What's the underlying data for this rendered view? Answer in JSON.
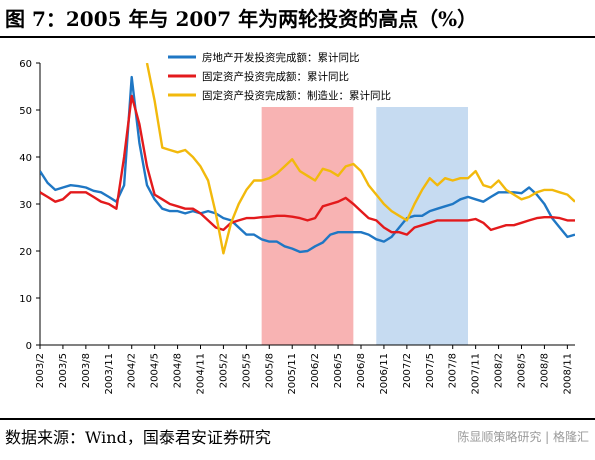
{
  "title": "图 7：2005 年与 2007 年为两轮投资的高点（%）",
  "source": "数据来源：Wind，国泰君安证券研究",
  "watermark": "陈显顺策略研究 | 格隆汇",
  "chart_data": {
    "type": "line",
    "ylim": [
      0,
      60
    ],
    "yticks": [
      0,
      10,
      20,
      30,
      40,
      50,
      60
    ],
    "x_range": [
      "2003-02",
      "2008-12"
    ],
    "x_tick_labels": [
      "2003/2",
      "2003/5",
      "2003/8",
      "2003/11",
      "2004/2",
      "2004/5",
      "2004/8",
      "2004/11",
      "2005/2",
      "2005/5",
      "2005/8",
      "2005/11",
      "2006/2",
      "2006/5",
      "2006/8",
      "2006/11",
      "2007/2",
      "2007/5",
      "2007/8",
      "2007/11",
      "2008/2",
      "2008/5",
      "2008/8",
      "2008/11"
    ],
    "x_tick_dates": [
      "2003-02",
      "2003-05",
      "2003-08",
      "2003-11",
      "2004-02",
      "2004-05",
      "2004-08",
      "2004-11",
      "2005-02",
      "2005-05",
      "2005-08",
      "2005-11",
      "2006-02",
      "2006-05",
      "2006-08",
      "2006-11",
      "2007-02",
      "2007-05",
      "2007-08",
      "2007-11",
      "2008-02",
      "2008-05",
      "2008-08",
      "2008-11"
    ],
    "shaded_regions": [
      {
        "start": "2005-07",
        "end": "2006-07",
        "color": "#f8b3b3"
      },
      {
        "start": "2006-10",
        "end": "2007-10",
        "color": "#c6dbf1"
      }
    ],
    "legend_position": "top",
    "series": [
      {
        "name": "房地产开发投资完成额：累计同比",
        "color": "#1f77c4",
        "points": [
          [
            "2003-02",
            37
          ],
          [
            "2003-03",
            34.5
          ],
          [
            "2003-04",
            33
          ],
          [
            "2003-05",
            33.5
          ],
          [
            "2003-06",
            34
          ],
          [
            "2003-07",
            33.8
          ],
          [
            "2003-08",
            33.5
          ],
          [
            "2003-09",
            32.8
          ],
          [
            "2003-10",
            32.5
          ],
          [
            "2003-11",
            31.5
          ],
          [
            "2003-12",
            30.5
          ],
          [
            "2004-01",
            34
          ],
          [
            "2004-02",
            57
          ],
          [
            "2004-03",
            43
          ],
          [
            "2004-04",
            34
          ],
          [
            "2004-05",
            31
          ],
          [
            "2004-06",
            29
          ],
          [
            "2004-07",
            28.5
          ],
          [
            "2004-08",
            28.5
          ],
          [
            "2004-09",
            28
          ],
          [
            "2004-10",
            28.5
          ],
          [
            "2004-11",
            28
          ],
          [
            "2004-12",
            28.5
          ],
          [
            "2005-01",
            28
          ],
          [
            "2005-02",
            27
          ],
          [
            "2005-03",
            26.5
          ],
          [
            "2005-04",
            25
          ],
          [
            "2005-05",
            23.5
          ],
          [
            "2005-06",
            23.5
          ],
          [
            "2005-07",
            22.5
          ],
          [
            "2005-08",
            22
          ],
          [
            "2005-09",
            22
          ],
          [
            "2005-10",
            21
          ],
          [
            "2005-11",
            20.5
          ],
          [
            "2005-12",
            19.8
          ],
          [
            "2006-01",
            20
          ],
          [
            "2006-02",
            21
          ],
          [
            "2006-03",
            21.8
          ],
          [
            "2006-04",
            23.5
          ],
          [
            "2006-05",
            24
          ],
          [
            "2006-06",
            24
          ],
          [
            "2006-07",
            24
          ],
          [
            "2006-08",
            24
          ],
          [
            "2006-09",
            23.5
          ],
          [
            "2006-10",
            22.5
          ],
          [
            "2006-11",
            22
          ],
          [
            "2006-12",
            23
          ],
          [
            "2007-01",
            25
          ],
          [
            "2007-02",
            27
          ],
          [
            "2007-03",
            27.5
          ],
          [
            "2007-04",
            27.5
          ],
          [
            "2007-05",
            28.5
          ],
          [
            "2007-06",
            29
          ],
          [
            "2007-07",
            29.5
          ],
          [
            "2007-08",
            30
          ],
          [
            "2007-09",
            31
          ],
          [
            "2007-10",
            31.5
          ],
          [
            "2007-11",
            31
          ],
          [
            "2007-12",
            30.5
          ],
          [
            "2008-01",
            31.5
          ],
          [
            "2008-02",
            32.5
          ],
          [
            "2008-03",
            32.5
          ],
          [
            "2008-04",
            32.5
          ],
          [
            "2008-05",
            32.3
          ],
          [
            "2008-06",
            33.5
          ],
          [
            "2008-07",
            32
          ],
          [
            "2008-08",
            30
          ],
          [
            "2008-09",
            27
          ],
          [
            "2008-10",
            25
          ],
          [
            "2008-11",
            23
          ],
          [
            "2008-12",
            23.5
          ]
        ]
      },
      {
        "name": "固定资产投资完成额：累计同比",
        "color": "#e31a1c",
        "points": [
          [
            "2003-02",
            32.5
          ],
          [
            "2003-03",
            31.5
          ],
          [
            "2003-04",
            30.5
          ],
          [
            "2003-05",
            31
          ],
          [
            "2003-06",
            32.5
          ],
          [
            "2003-07",
            32.5
          ],
          [
            "2003-08",
            32.5
          ],
          [
            "2003-09",
            31.5
          ],
          [
            "2003-10",
            30.5
          ],
          [
            "2003-11",
            30
          ],
          [
            "2003-12",
            29
          ],
          [
            "2004-01",
            40
          ],
          [
            "2004-02",
            53
          ],
          [
            "2004-03",
            47
          ],
          [
            "2004-04",
            38
          ],
          [
            "2004-05",
            32
          ],
          [
            "2004-06",
            31
          ],
          [
            "2004-07",
            30
          ],
          [
            "2004-08",
            29.5
          ],
          [
            "2004-09",
            29
          ],
          [
            "2004-10",
            29
          ],
          [
            "2004-11",
            28
          ],
          [
            "2004-12",
            26.5
          ],
          [
            "2005-01",
            25
          ],
          [
            "2005-02",
            24.5
          ],
          [
            "2005-03",
            26
          ],
          [
            "2005-04",
            26.5
          ],
          [
            "2005-05",
            27
          ],
          [
            "2005-06",
            27
          ],
          [
            "2005-07",
            27.2
          ],
          [
            "2005-08",
            27.3
          ],
          [
            "2005-09",
            27.5
          ],
          [
            "2005-10",
            27.5
          ],
          [
            "2005-11",
            27.3
          ],
          [
            "2005-12",
            27
          ],
          [
            "2006-01",
            26.5
          ],
          [
            "2006-02",
            27
          ],
          [
            "2006-03",
            29.5
          ],
          [
            "2006-04",
            30
          ],
          [
            "2006-05",
            30.5
          ],
          [
            "2006-06",
            31.3
          ],
          [
            "2006-07",
            30
          ],
          [
            "2006-08",
            28.5
          ],
          [
            "2006-09",
            27
          ],
          [
            "2006-10",
            26.5
          ],
          [
            "2006-11",
            25
          ],
          [
            "2006-12",
            24
          ],
          [
            "2007-01",
            24
          ],
          [
            "2007-02",
            23.5
          ],
          [
            "2007-03",
            25
          ],
          [
            "2007-04",
            25.5
          ],
          [
            "2007-05",
            26
          ],
          [
            "2007-06",
            26.5
          ],
          [
            "2007-07",
            26.5
          ],
          [
            "2007-08",
            26.5
          ],
          [
            "2007-09",
            26.5
          ],
          [
            "2007-10",
            26.5
          ],
          [
            "2007-11",
            26.8
          ],
          [
            "2007-12",
            26
          ],
          [
            "2008-01",
            24.5
          ],
          [
            "2008-02",
            25
          ],
          [
            "2008-03",
            25.5
          ],
          [
            "2008-04",
            25.5
          ],
          [
            "2008-05",
            26
          ],
          [
            "2008-06",
            26.5
          ],
          [
            "2008-07",
            27
          ],
          [
            "2008-08",
            27.2
          ],
          [
            "2008-09",
            27.2
          ],
          [
            "2008-10",
            27
          ],
          [
            "2008-11",
            26.5
          ],
          [
            "2008-12",
            26.5
          ]
        ]
      },
      {
        "name": "固定资产投资完成额：制造业：累计同比",
        "color": "#f2b90c",
        "points": [
          [
            "2004-04",
            60
          ],
          [
            "2004-05",
            52
          ],
          [
            "2004-06",
            42
          ],
          [
            "2004-07",
            41.5
          ],
          [
            "2004-08",
            41
          ],
          [
            "2004-09",
            41.5
          ],
          [
            "2004-10",
            40
          ],
          [
            "2004-11",
            38
          ],
          [
            "2004-12",
            35
          ],
          [
            "2005-01",
            28
          ],
          [
            "2005-02",
            19.5
          ],
          [
            "2005-03",
            26
          ],
          [
            "2005-04",
            30
          ],
          [
            "2005-05",
            33
          ],
          [
            "2005-06",
            35
          ],
          [
            "2005-07",
            35
          ],
          [
            "2005-08",
            35.5
          ],
          [
            "2005-09",
            36.5
          ],
          [
            "2005-10",
            38
          ],
          [
            "2005-11",
            39.5
          ],
          [
            "2005-12",
            37
          ],
          [
            "2006-01",
            36
          ],
          [
            "2006-02",
            35
          ],
          [
            "2006-03",
            37.5
          ],
          [
            "2006-04",
            37
          ],
          [
            "2006-05",
            36
          ],
          [
            "2006-06",
            38
          ],
          [
            "2006-07",
            38.5
          ],
          [
            "2006-08",
            37
          ],
          [
            "2006-09",
            34
          ],
          [
            "2006-10",
            32
          ],
          [
            "2006-11",
            30
          ],
          [
            "2006-12",
            28.5
          ],
          [
            "2007-01",
            27.5
          ],
          [
            "2007-02",
            26.5
          ],
          [
            "2007-03",
            30
          ],
          [
            "2007-04",
            33
          ],
          [
            "2007-05",
            35.5
          ],
          [
            "2007-06",
            34
          ],
          [
            "2007-07",
            35.5
          ],
          [
            "2007-08",
            35
          ],
          [
            "2007-09",
            35.5
          ],
          [
            "2007-10",
            35.5
          ],
          [
            "2007-11",
            37
          ],
          [
            "2007-12",
            34
          ],
          [
            "2008-01",
            33.5
          ],
          [
            "2008-02",
            35
          ],
          [
            "2008-03",
            33
          ],
          [
            "2008-04",
            32
          ],
          [
            "2008-05",
            31
          ],
          [
            "2008-06",
            31.5
          ],
          [
            "2008-07",
            32.5
          ],
          [
            "2008-08",
            33
          ],
          [
            "2008-09",
            33
          ],
          [
            "2008-10",
            32.5
          ],
          [
            "2008-11",
            32
          ],
          [
            "2008-12",
            30.5
          ]
        ]
      }
    ]
  }
}
